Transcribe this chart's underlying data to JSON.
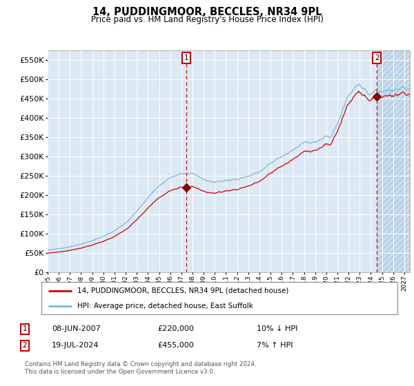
{
  "title": "14, PUDDINGMOOR, BECCLES, NR34 9PL",
  "subtitle": "Price paid vs. HM Land Registry's House Price Index (HPI)",
  "ylim": [
    0,
    575000
  ],
  "yticks": [
    0,
    50000,
    100000,
    150000,
    200000,
    250000,
    300000,
    350000,
    400000,
    450000,
    500000,
    550000
  ],
  "ytick_labels": [
    "£0",
    "£50K",
    "£100K",
    "£150K",
    "£200K",
    "£250K",
    "£300K",
    "£350K",
    "£400K",
    "£450K",
    "£500K",
    "£550K"
  ],
  "xstart_year": 1995,
  "xend_year": 2027,
  "transaction1_date": 2007.44,
  "transaction1_price": 220000,
  "transaction2_date": 2024.54,
  "transaction2_price": 455000,
  "hpi_line_color": "#7ab8d9",
  "price_line_color": "#cc0000",
  "vline_color": "#cc0000",
  "marker_color": "#8b0000",
  "background_color": "#dce9f5",
  "legend1_label": "14, PUDDINGMOOR, BECCLES, NR34 9PL (detached house)",
  "legend2_label": "HPI: Average price, detached house, East Suffolk",
  "table_row1": [
    "1",
    "08-JUN-2007",
    "£220,000",
    "10% ↓ HPI"
  ],
  "table_row2": [
    "2",
    "19-JUL-2024",
    "£455,000",
    "7% ↑ HPI"
  ],
  "footer": "Contains HM Land Registry data © Crown copyright and database right 2024.\nThis data is licensed under the Open Government Licence v3.0.",
  "grid_color": "#ffffff",
  "box_color": "#cc0000"
}
